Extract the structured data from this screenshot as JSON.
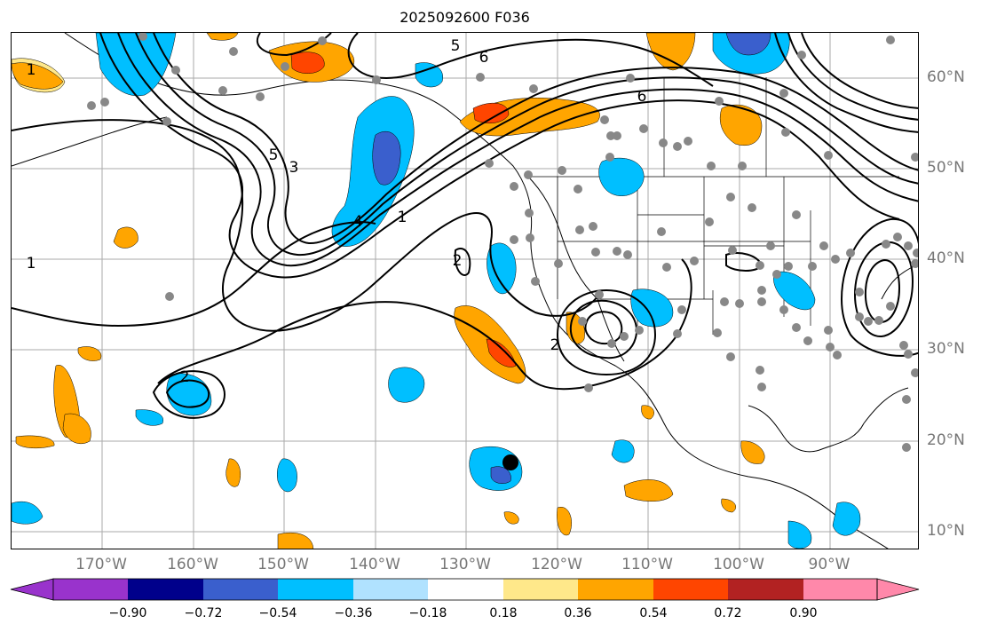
{
  "map": {
    "title": "2025092600 F036",
    "lon_labels": [
      "170°W",
      "160°W",
      "150°W",
      "140°W",
      "130°W",
      "120°W",
      "110°W",
      "100°W",
      "90°W"
    ],
    "lat_labels": [
      "60°N",
      "50°N",
      "40°N",
      "30°N",
      "20°N",
      "10°N"
    ],
    "contour_labels": [
      "1",
      "1",
      "2",
      "2",
      "2",
      "3",
      "4",
      "5",
      "5",
      "6",
      "6",
      "1"
    ],
    "colorbar": {
      "ticks": [
        "−0.90",
        "−0.72",
        "−0.54",
        "−0.36",
        "−0.18",
        "0.18",
        "0.36",
        "0.54",
        "0.72",
        "0.90"
      ],
      "colors": [
        "#9933cc",
        "#00008b",
        "#3a5fcd",
        "#00bfff",
        "#b0e2ff",
        "#ffffff",
        "#ffe88a",
        "#ffa500",
        "#ff4500",
        "#b22222",
        "#ff88aa"
      ]
    }
  }
}
